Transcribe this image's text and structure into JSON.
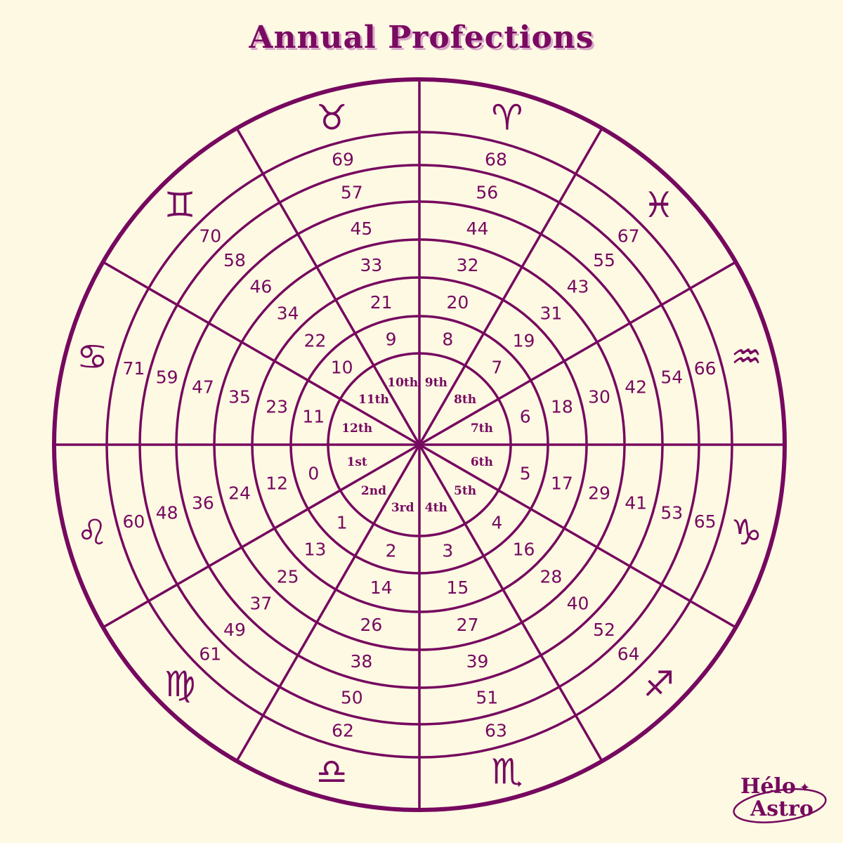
{
  "title": "Annual Profections",
  "logo": {
    "line1": "Hélo",
    "line2": "Astro"
  },
  "colors": {
    "background": "#fdf9e3",
    "ink": "#76095f",
    "title_shadow": "#d9a7c9"
  },
  "houses": [
    "1st",
    "2nd",
    "3rd",
    "4th",
    "5th",
    "6th",
    "7th",
    "8th",
    "9th",
    "10th",
    "11th",
    "12th"
  ],
  "signs": [
    "♌",
    "♍",
    "♎",
    "♏",
    "♐",
    "♑",
    "♒",
    "♓",
    "♈",
    "♉",
    "♊",
    "♋"
  ],
  "sign_names": [
    "leo",
    "virgo",
    "libra",
    "scorpio",
    "sagittarius",
    "capricorn",
    "aquarius",
    "pisces",
    "aries",
    "taurus",
    "gemini",
    "cancer"
  ],
  "ages_by_house": [
    [
      0,
      12,
      24,
      36,
      48,
      60
    ],
    [
      1,
      13,
      25,
      37,
      49,
      61
    ],
    [
      2,
      14,
      26,
      38,
      50,
      62
    ],
    [
      3,
      15,
      27,
      39,
      51,
      63
    ],
    [
      4,
      16,
      28,
      40,
      52,
      64
    ],
    [
      5,
      17,
      29,
      41,
      53,
      65
    ],
    [
      6,
      18,
      30,
      42,
      54,
      66
    ],
    [
      7,
      19,
      31,
      43,
      55,
      67
    ],
    [
      8,
      20,
      32,
      44,
      56,
      68
    ],
    [
      9,
      21,
      33,
      45,
      57,
      69
    ],
    [
      10,
      22,
      34,
      46,
      58,
      70
    ],
    [
      11,
      23,
      35,
      47,
      59,
      71
    ]
  ]
}
